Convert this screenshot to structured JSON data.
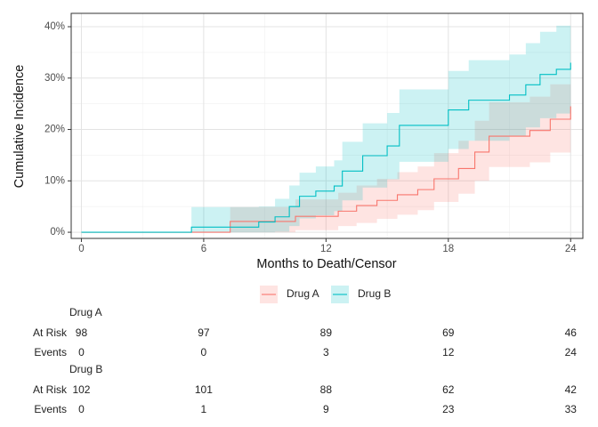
{
  "chart_data": {
    "type": "step",
    "xlabel": "Months to Death/Censor",
    "ylabel": "Cumulative Incidence",
    "xlim": [
      -0.5,
      24.6
    ],
    "xticks": [
      0,
      6,
      12,
      18,
      24
    ],
    "ylim": [
      -1.2,
      42.6
    ],
    "yticks": [
      {
        "value": 0,
        "label": "0%"
      },
      {
        "value": 10,
        "label": "10%"
      },
      {
        "value": 20,
        "label": "20%"
      },
      {
        "value": 30,
        "label": "30%"
      },
      {
        "value": 40,
        "label": "40%"
      }
    ],
    "grid": true,
    "legend": "bottom",
    "series": [
      {
        "name": "Drug A",
        "color": "#F8766D",
        "x": [
          0,
          7.3,
          10.5,
          12.6,
          13.5,
          14.5,
          15.5,
          16.5,
          17.3,
          18.5,
          19.3,
          20.0,
          22.0,
          23.0,
          24.0
        ],
        "values": [
          0,
          2.1,
          3.1,
          4.1,
          5.2,
          6.2,
          7.3,
          8.3,
          10.4,
          12.4,
          15.6,
          18.7,
          19.8,
          22.0,
          24.5
        ],
        "lower": [
          0,
          0,
          0.4,
          1.2,
          1.8,
          2.6,
          3.4,
          4.3,
          5.9,
          7.5,
          10.0,
          12.7,
          13.6,
          15.5,
          17.5
        ],
        "upper": [
          0,
          4.9,
          6.4,
          7.7,
          9.1,
          10.4,
          11.7,
          12.8,
          15.4,
          17.8,
          21.7,
          25.3,
          26.4,
          28.8,
          31.5
        ]
      },
      {
        "name": "Drug B",
        "color": "#00BFC4",
        "x": [
          0,
          5.4,
          8.7,
          9.5,
          10.2,
          10.7,
          11.5,
          12.4,
          12.8,
          13.8,
          15.0,
          15.6,
          18.0,
          19.0,
          21.0,
          21.8,
          22.5,
          23.3,
          24.0
        ],
        "values": [
          0,
          1.0,
          2.0,
          3.0,
          5.0,
          7.0,
          8.0,
          9.0,
          11.9,
          14.9,
          16.8,
          20.8,
          23.8,
          25.7,
          26.7,
          28.7,
          30.7,
          31.7,
          33.0
        ],
        "lower": [
          0,
          0,
          0,
          0.1,
          1.2,
          2.7,
          3.3,
          4.1,
          6.2,
          8.7,
          10.3,
          13.7,
          16.2,
          17.8,
          18.7,
          20.4,
          22.2,
          23.1,
          24.3
        ],
        "upper": [
          0,
          4.9,
          5.0,
          6.5,
          9.1,
          11.6,
          12.8,
          14.0,
          17.6,
          21.2,
          23.2,
          27.8,
          31.4,
          33.5,
          34.6,
          36.8,
          39.0,
          40.2,
          41.7
        ]
      }
    ],
    "risk_table": {
      "row_labels": [
        "At Risk",
        "Events"
      ],
      "strata": [
        {
          "name": "Drug A",
          "at_risk": [
            98,
            97,
            89,
            69,
            46
          ],
          "events": [
            0,
            0,
            3,
            12,
            24
          ]
        },
        {
          "name": "Drug B",
          "at_risk": [
            102,
            101,
            88,
            62,
            42
          ],
          "events": [
            0,
            1,
            9,
            23,
            33
          ]
        }
      ]
    }
  }
}
